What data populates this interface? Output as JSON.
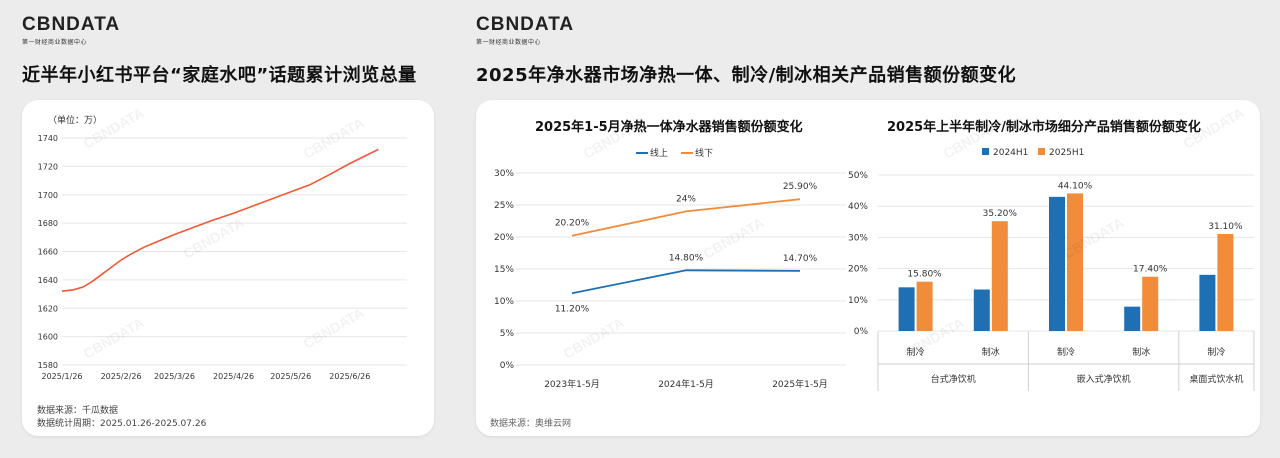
{
  "brand": {
    "name": "CBNDATA",
    "tagline": "第一财经商业数据中心"
  },
  "left": {
    "title": "近半年小红书平台“家庭水吧”话题累计浏览总量",
    "chart_data": {
      "type": "line",
      "unit_label": "（单位：万）",
      "x_ticks": [
        "2025/1/26",
        "2025/2/26",
        "2025/3/26",
        "2025/4/26",
        "2025/5/26",
        "2025/6/26"
      ],
      "y_ticks": [
        1580,
        1600,
        1620,
        1640,
        1660,
        1680,
        1700,
        1720,
        1740
      ],
      "ylim": [
        1580,
        1740
      ],
      "x_range": [
        "2025/1/26",
        "2025/7/26"
      ],
      "series": [
        {
          "color": "#ef5a36",
          "points": [
            [
              "2025/1/26",
              1632
            ],
            [
              "2025/2/1",
              1633
            ],
            [
              "2025/2/6",
              1635
            ],
            [
              "2025/2/11",
              1639
            ],
            [
              "2025/2/16",
              1644
            ],
            [
              "2025/2/21",
              1649
            ],
            [
              "2025/2/26",
              1654
            ],
            [
              "2025/3/3",
              1658
            ],
            [
              "2025/3/10",
              1663
            ],
            [
              "2025/3/17",
              1667
            ],
            [
              "2025/3/26",
              1672
            ],
            [
              "2025/4/5",
              1677
            ],
            [
              "2025/4/15",
              1682
            ],
            [
              "2025/4/26",
              1687
            ],
            [
              "2025/5/6",
              1692
            ],
            [
              "2025/5/16",
              1697
            ],
            [
              "2025/5/26",
              1702
            ],
            [
              "2025/6/5",
              1707
            ],
            [
              "2025/6/15",
              1714
            ],
            [
              "2025/6/26",
              1722
            ],
            [
              "2025/7/5",
              1728
            ],
            [
              "2025/7/11",
              1732
            ]
          ]
        }
      ],
      "grid": true
    },
    "source_lines": [
      "数据来源：千瓜数据",
      "数据统计周期：2025.01.26-2025.07.26"
    ]
  },
  "right": {
    "title": "2025年净水器市场净热一体、制冷/制冰相关产品销售额份额变化",
    "source": "数据来源：奥维云网",
    "chart_data": [
      {
        "type": "line",
        "title": "2025年1-5月净热一体净水器销售额份额变化",
        "categories": [
          "2023年1-5月",
          "2024年1-5月",
          "2025年1-5月"
        ],
        "y_ticks": [
          "0%",
          "5%",
          "10%",
          "15%",
          "20%",
          "25%",
          "30%"
        ],
        "ylim": [
          0,
          30
        ],
        "legend_position": "top",
        "series": [
          {
            "name": "线上",
            "color": "#1f6fb5",
            "values": [
              11.2,
              14.8,
              14.7
            ],
            "labels": [
              "11.20%",
              "14.80%",
              "14.70%"
            ]
          },
          {
            "name": "线下",
            "color": "#f08c3a",
            "values": [
              20.2,
              24,
              25.9
            ],
            "labels": [
              "20.20%",
              "24%",
              "25.90%"
            ]
          }
        ]
      },
      {
        "type": "bar",
        "title": "2025年上半年制冷/制冰市场细分产品销售额份额变化",
        "y_ticks": [
          "0%",
          "10%",
          "20%",
          "30%",
          "40%",
          "50%"
        ],
        "ylim": [
          0,
          50
        ],
        "legend_position": "top",
        "sub_categories": [
          "制冷",
          "制冰",
          "制冷",
          "制冰",
          "制冷"
        ],
        "groups": [
          {
            "label": "台式净饮机",
            "span": 2
          },
          {
            "label": "嵌入式净饮机",
            "span": 2
          },
          {
            "label": "桌面式饮水机",
            "span": 1
          }
        ],
        "series": [
          {
            "name": "2024H1",
            "color": "#1f6fb5",
            "values": [
              14,
              13.3,
              43,
              7.8,
              18
            ]
          },
          {
            "name": "2025H1",
            "color": "#f08c3a",
            "values": [
              15.8,
              35.2,
              44.1,
              17.4,
              31.1
            ]
          }
        ],
        "data_labels": [
          "15.80%",
          "35.20%",
          "44.10%",
          "17.40%",
          "31.10%"
        ]
      }
    ]
  }
}
